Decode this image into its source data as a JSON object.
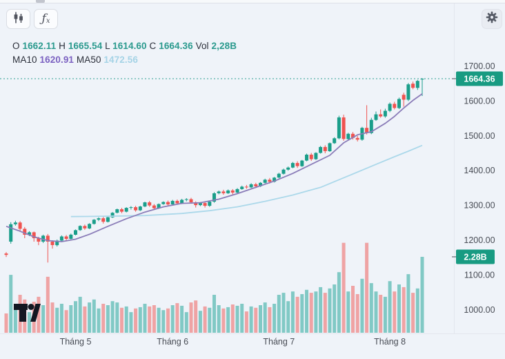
{
  "window_title": "Candlestick price chart with volume",
  "toolbar": {
    "fx_f": "ƒ",
    "fx_x": "x"
  },
  "legend": {
    "o_label": "O",
    "o_value": "1662.11",
    "h_label": "H",
    "h_value": "1665.54",
    "l_label": "L",
    "l_value": "1614.60",
    "c_label": "C",
    "c_value": "1664.36",
    "vol_label": "Vol",
    "vol_value": "2,28B",
    "ma10_label": "MA10",
    "ma10_value": "1620.91",
    "ma50_label": "MA50",
    "ma50_value": "1472.56"
  },
  "price_axis": {
    "tick_labels": [
      "1700.00",
      "1600.00",
      "1500.00",
      "1400.00",
      "1300.00",
      "1200.00",
      "1100.00",
      "1000.00"
    ],
    "price_badge": "1664.36",
    "volume_badge": "2.28B"
  },
  "time_axis": {
    "labels": [
      "Tháng 5",
      "Tháng 6",
      "Tháng 7",
      "Tháng 8"
    ]
  },
  "colors": {
    "bg": "#eff3f9",
    "up": "#1a9e8a",
    "down": "#ef5350",
    "volume_up": "rgba(38,166,154,0.55)",
    "volume_down": "rgba(239,83,80,0.50)",
    "ma10_line": "#8a7cb8",
    "ma50_line": "#abd8ea",
    "badge": "#189b82",
    "badge_text": "#ffffff",
    "dotted_line": "#2a9d90",
    "axis_text": "#474b54",
    "separator": "#e3e6ee",
    "logo": "#131722"
  },
  "chart_data": {
    "type": "candlestick",
    "title": "",
    "price_ticks": [
      1700,
      1600,
      1500,
      1400,
      1300,
      1200,
      1100,
      1000
    ],
    "ylim": [
      985,
      1710
    ],
    "current_price": 1664.36,
    "current_volume_b": 2.28,
    "last_candle": {
      "open": 1662.11,
      "high": 1665.54,
      "low": 1614.6,
      "close": 1664.36,
      "volume": "2,28B"
    },
    "month_label_indices": [
      15,
      36,
      59,
      83
    ],
    "candles": [
      [
        1162,
        1166,
        1152,
        1158,
        0.58
      ],
      [
        1196,
        1252,
        1190,
        1246,
        1.74
      ],
      [
        1246,
        1256,
        1242,
        1251,
        0.79
      ],
      [
        1251,
        1255,
        1226,
        1233,
        1.14
      ],
      [
        1233,
        1238,
        1206,
        1216,
        1.0
      ],
      [
        1216,
        1226,
        1212,
        1223,
        0.62
      ],
      [
        1223,
        1225,
        1196,
        1206,
        0.93
      ],
      [
        1206,
        1210,
        1186,
        1196,
        1.08
      ],
      [
        1196,
        1216,
        1192,
        1213,
        0.83
      ],
      [
        1213,
        1218,
        1136,
        1196,
        1.68
      ],
      [
        1196,
        1200,
        1176,
        1186,
        0.91
      ],
      [
        1186,
        1202,
        1182,
        1199,
        0.75
      ],
      [
        1199,
        1214,
        1196,
        1211,
        0.87
      ],
      [
        1211,
        1215,
        1199,
        1204,
        0.68
      ],
      [
        1204,
        1219,
        1202,
        1216,
        0.83
      ],
      [
        1216,
        1231,
        1214,
        1229,
        0.95
      ],
      [
        1229,
        1243,
        1227,
        1241,
        1.08
      ],
      [
        1241,
        1245,
        1230,
        1234,
        0.79
      ],
      [
        1234,
        1249,
        1232,
        1247,
        0.91
      ],
      [
        1247,
        1261,
        1245,
        1259,
        1.0
      ],
      [
        1259,
        1266,
        1255,
        1263,
        0.73
      ],
      [
        1263,
        1267,
        1248,
        1253,
        0.87
      ],
      [
        1253,
        1268,
        1251,
        1266,
        0.83
      ],
      [
        1266,
        1281,
        1264,
        1279,
        0.95
      ],
      [
        1279,
        1291,
        1277,
        1289,
        0.91
      ],
      [
        1289,
        1293,
        1278,
        1282,
        0.75
      ],
      [
        1282,
        1295,
        1280,
        1293,
        0.79
      ],
      [
        1293,
        1298,
        1288,
        1295,
        0.62
      ],
      [
        1295,
        1299,
        1282,
        1286,
        0.73
      ],
      [
        1286,
        1299,
        1284,
        1297,
        0.77
      ],
      [
        1297,
        1311,
        1295,
        1309,
        0.87
      ],
      [
        1309,
        1313,
        1296,
        1300,
        0.79
      ],
      [
        1300,
        1304,
        1287,
        1292,
        0.83
      ],
      [
        1292,
        1306,
        1290,
        1304,
        0.75
      ],
      [
        1304,
        1312,
        1302,
        1310,
        0.68
      ],
      [
        1310,
        1314,
        1299,
        1303,
        0.73
      ],
      [
        1303,
        1316,
        1301,
        1313,
        0.83
      ],
      [
        1313,
        1317,
        1302,
        1306,
        0.89
      ],
      [
        1306,
        1319,
        1304,
        1316,
        0.81
      ],
      [
        1316,
        1321,
        1312,
        1318,
        0.62
      ],
      [
        1318,
        1322,
        1305,
        1309,
        0.91
      ],
      [
        1309,
        1312,
        1294,
        1301,
        0.97
      ],
      [
        1301,
        1310,
        1298,
        1307,
        0.66
      ],
      [
        1307,
        1311,
        1294,
        1299,
        0.79
      ],
      [
        1299,
        1313,
        1296,
        1311,
        0.75
      ],
      [
        1311,
        1338,
        1308,
        1335,
        1.14
      ],
      [
        1335,
        1343,
        1332,
        1340,
        0.83
      ],
      [
        1340,
        1345,
        1331,
        1335,
        0.73
      ],
      [
        1335,
        1346,
        1333,
        1343,
        0.77
      ],
      [
        1343,
        1347,
        1332,
        1337,
        0.85
      ],
      [
        1337,
        1350,
        1335,
        1347,
        0.81
      ],
      [
        1347,
        1357,
        1345,
        1354,
        0.87
      ],
      [
        1354,
        1359,
        1348,
        1352,
        0.64
      ],
      [
        1352,
        1364,
        1350,
        1361,
        0.79
      ],
      [
        1361,
        1365,
        1350,
        1355,
        0.75
      ],
      [
        1355,
        1367,
        1353,
        1365,
        0.83
      ],
      [
        1365,
        1377,
        1363,
        1374,
        0.91
      ],
      [
        1374,
        1379,
        1363,
        1368,
        0.77
      ],
      [
        1368,
        1382,
        1366,
        1380,
        0.87
      ],
      [
        1380,
        1394,
        1378,
        1391,
        1.14
      ],
      [
        1391,
        1406,
        1389,
        1403,
        1.2
      ],
      [
        1403,
        1412,
        1400,
        1409,
        0.95
      ],
      [
        1409,
        1425,
        1407,
        1422,
        1.24
      ],
      [
        1422,
        1427,
        1408,
        1413,
        1.08
      ],
      [
        1413,
        1431,
        1411,
        1429,
        1.16
      ],
      [
        1429,
        1449,
        1427,
        1446,
        1.29
      ],
      [
        1446,
        1451,
        1428,
        1433,
        1.2
      ],
      [
        1433,
        1453,
        1431,
        1451,
        1.24
      ],
      [
        1451,
        1471,
        1449,
        1468,
        1.37
      ],
      [
        1468,
        1473,
        1450,
        1456,
        1.2
      ],
      [
        1456,
        1481,
        1454,
        1479,
        1.33
      ],
      [
        1479,
        1496,
        1477,
        1493,
        1.45
      ],
      [
        1493,
        1558,
        1490,
        1553,
        1.82
      ],
      [
        1553,
        1561,
        1486,
        1491,
        2.7
      ],
      [
        1491,
        1509,
        1488,
        1506,
        1.24
      ],
      [
        1506,
        1511,
        1489,
        1494,
        1.41
      ],
      [
        1494,
        1500,
        1484,
        1489,
        1.16
      ],
      [
        1489,
        1526,
        1486,
        1523,
        1.62
      ],
      [
        1523,
        1588,
        1504,
        1508,
        2.7
      ],
      [
        1508,
        1552,
        1505,
        1546,
        1.49
      ],
      [
        1546,
        1570,
        1543,
        1562,
        1.24
      ],
      [
        1562,
        1576,
        1552,
        1556,
        1.14
      ],
      [
        1556,
        1578,
        1552,
        1572,
        1.08
      ],
      [
        1572,
        1596,
        1568,
        1592,
        1.55
      ],
      [
        1592,
        1598,
        1576,
        1580,
        1.24
      ],
      [
        1580,
        1610,
        1577,
        1606,
        1.45
      ],
      [
        1618,
        1624,
        1584,
        1604,
        1.37
      ],
      [
        1604,
        1652,
        1600,
        1648,
        1.76
      ],
      [
        1650,
        1656,
        1634,
        1638,
        1.2
      ],
      [
        1638,
        1661,
        1632,
        1658,
        1.33
      ],
      [
        1662.11,
        1665.54,
        1614.6,
        1664.36,
        2.28
      ]
    ],
    "ma10_keypoints": [
      [
        0,
        1240
      ],
      [
        3,
        1226
      ],
      [
        6,
        1210
      ],
      [
        9,
        1199
      ],
      [
        12,
        1196
      ],
      [
        15,
        1203
      ],
      [
        18,
        1217
      ],
      [
        22,
        1240
      ],
      [
        26,
        1262
      ],
      [
        30,
        1281
      ],
      [
        34,
        1296
      ],
      [
        38,
        1306
      ],
      [
        42,
        1308
      ],
      [
        46,
        1318
      ],
      [
        50,
        1334
      ],
      [
        54,
        1352
      ],
      [
        58,
        1370
      ],
      [
        62,
        1392
      ],
      [
        66,
        1418
      ],
      [
        70,
        1444
      ],
      [
        73,
        1480
      ],
      [
        76,
        1503
      ],
      [
        79,
        1512
      ],
      [
        82,
        1536
      ],
      [
        84,
        1556
      ],
      [
        86,
        1580
      ],
      [
        88,
        1602
      ],
      [
        90,
        1620.91
      ]
    ],
    "ma50_keypoints": [
      [
        14,
        1268
      ],
      [
        22,
        1269
      ],
      [
        30,
        1271
      ],
      [
        38,
        1277
      ],
      [
        44,
        1285
      ],
      [
        50,
        1296
      ],
      [
        56,
        1312
      ],
      [
        62,
        1330
      ],
      [
        68,
        1352
      ],
      [
        74,
        1385
      ],
      [
        80,
        1418
      ],
      [
        84,
        1440
      ],
      [
        87,
        1456
      ],
      [
        90,
        1472.56
      ]
    ]
  }
}
